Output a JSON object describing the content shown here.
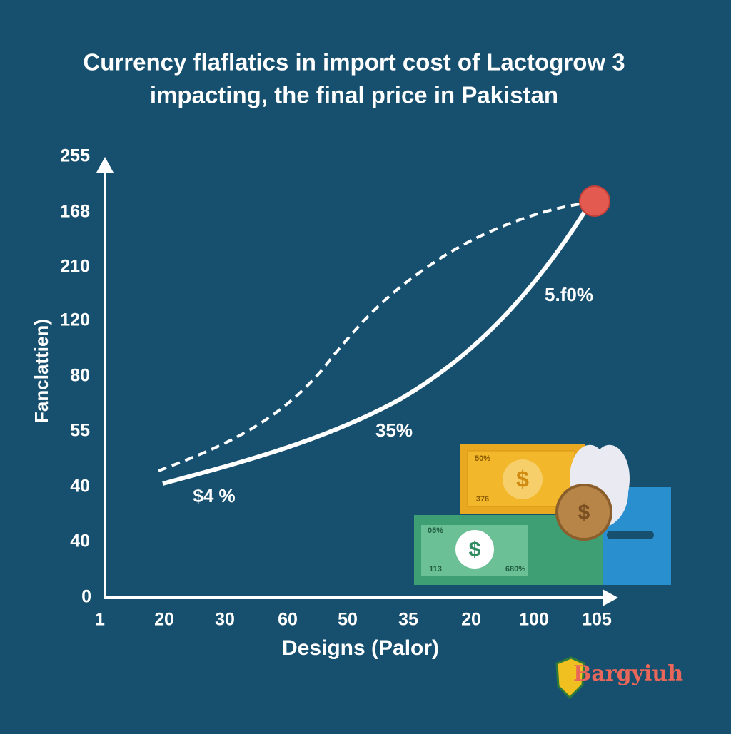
{
  "chart_data": {
    "type": "line",
    "title": [
      "Currency flaflatics in import cost of Lactogrow 3",
      "impacting, the final price in Pakistan"
    ],
    "y_label": "Fanclattien)",
    "x_label": "Designs (Palor)",
    "y_axis_labels": [
      "255",
      "168",
      "210",
      "120",
      "80",
      "55",
      "40",
      "40",
      "0"
    ],
    "categories": [
      "1",
      "20",
      "30",
      "60",
      "50",
      "35",
      "20",
      "100",
      "105"
    ],
    "annotations": [
      "$4 %",
      "35%",
      "5.f0%"
    ],
    "illustration_labels": [
      "50%",
      "376",
      "05%",
      "113",
      "680%"
    ],
    "logo": "Bargyiuh"
  }
}
